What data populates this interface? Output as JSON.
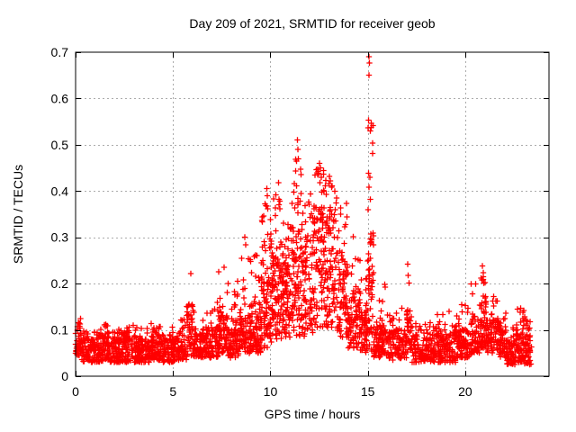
{
  "page": {
    "background": "#ffffff"
  },
  "chart_data": {
    "type": "scatter",
    "title": "Day 209 of 2021, SRMTID for receiver geob",
    "xlabel": "GPS time / hours",
    "ylabel": "SRMTID / TECUs",
    "xlim": [
      0,
      24.3
    ],
    "ylim": [
      0,
      0.7
    ],
    "xticks": [
      0,
      5,
      10,
      15,
      20
    ],
    "xtick_labels": [
      "0",
      "5",
      "10",
      "15",
      "20"
    ],
    "yticks": [
      0,
      0.1,
      0.2,
      0.3,
      0.4,
      0.5,
      0.6,
      0.7
    ],
    "ytick_labels": [
      "0",
      "0.1",
      "0.2",
      "0.3",
      "0.4",
      "0.5",
      "0.6",
      "0.7"
    ],
    "grid": true,
    "legend": "none",
    "marker": "plus",
    "marker_color": "#ff0000",
    "grid_color": "#ababab",
    "axis_color": "#000000",
    "data_time_span_hours": [
      0,
      23.4
    ],
    "envelope_bins_comment": "[t_start,t_end,band_low,band_typical,band_max,n_points] read from plot pixels",
    "envelope_bins": [
      [
        0.0,
        0.3,
        0.045,
        0.105,
        0.125,
        45
      ],
      [
        0.3,
        1.0,
        0.03,
        0.08,
        0.1,
        95
      ],
      [
        1.0,
        1.7,
        0.03,
        0.085,
        0.115,
        95
      ],
      [
        1.7,
        2.4,
        0.03,
        0.08,
        0.105,
        95
      ],
      [
        2.4,
        3.1,
        0.03,
        0.085,
        0.11,
        95
      ],
      [
        3.1,
        3.8,
        0.03,
        0.08,
        0.105,
        95
      ],
      [
        3.8,
        4.5,
        0.035,
        0.085,
        0.115,
        95
      ],
      [
        4.5,
        5.2,
        0.03,
        0.08,
        0.11,
        90
      ],
      [
        5.2,
        5.7,
        0.035,
        0.09,
        0.13,
        60
      ],
      [
        5.7,
        6.1,
        0.04,
        0.15,
        0.225,
        55
      ],
      [
        6.1,
        6.7,
        0.04,
        0.09,
        0.13,
        75
      ],
      [
        6.7,
        7.3,
        0.04,
        0.1,
        0.16,
        80
      ],
      [
        7.3,
        7.8,
        0.05,
        0.13,
        0.235,
        70
      ],
      [
        7.8,
        8.4,
        0.04,
        0.12,
        0.21,
        80
      ],
      [
        8.4,
        9.0,
        0.05,
        0.13,
        0.26,
        85
      ],
      [
        9.0,
        9.5,
        0.05,
        0.15,
        0.28,
        80
      ],
      [
        9.5,
        10.0,
        0.06,
        0.2,
        0.4,
        85
      ],
      [
        10.0,
        10.5,
        0.07,
        0.24,
        0.42,
        90
      ],
      [
        10.5,
        11.0,
        0.08,
        0.22,
        0.35,
        90
      ],
      [
        11.0,
        11.6,
        0.08,
        0.27,
        0.47,
        95
      ],
      [
        11.6,
        12.2,
        0.08,
        0.25,
        0.4,
        90
      ],
      [
        12.2,
        12.8,
        0.1,
        0.34,
        0.455,
        95
      ],
      [
        12.8,
        13.4,
        0.1,
        0.32,
        0.435,
        95
      ],
      [
        13.4,
        14.0,
        0.08,
        0.25,
        0.38,
        85
      ],
      [
        14.0,
        14.6,
        0.06,
        0.17,
        0.31,
        80
      ],
      [
        14.6,
        15.0,
        0.05,
        0.14,
        0.26,
        60
      ],
      [
        15.0,
        15.3,
        0.05,
        0.28,
        0.55,
        55
      ],
      [
        15.3,
        16.0,
        0.04,
        0.11,
        0.22,
        90
      ],
      [
        16.0,
        17.0,
        0.035,
        0.095,
        0.16,
        115
      ],
      [
        17.0,
        17.25,
        0.05,
        0.14,
        0.245,
        30
      ],
      [
        17.25,
        18.5,
        0.03,
        0.085,
        0.13,
        150
      ],
      [
        18.5,
        19.5,
        0.03,
        0.09,
        0.145,
        120
      ],
      [
        19.5,
        20.3,
        0.04,
        0.1,
        0.16,
        95
      ],
      [
        20.3,
        20.75,
        0.05,
        0.13,
        0.2,
        60
      ],
      [
        20.75,
        21.1,
        0.06,
        0.17,
        0.235,
        55
      ],
      [
        21.1,
        21.7,
        0.05,
        0.12,
        0.175,
        70
      ],
      [
        21.7,
        22.1,
        0.04,
        0.1,
        0.14,
        50
      ],
      [
        22.1,
        22.55,
        0.025,
        0.075,
        0.11,
        55
      ],
      [
        22.55,
        23.05,
        0.03,
        0.1,
        0.148,
        65
      ],
      [
        23.05,
        23.4,
        0.025,
        0.085,
        0.125,
        50
      ]
    ],
    "notable_points": [
      [
        15.05,
        0.69
      ],
      [
        15.08,
        0.677
      ],
      [
        15.06,
        0.65
      ],
      [
        15.04,
        0.553
      ],
      [
        15.1,
        0.43
      ],
      [
        15.07,
        0.408
      ],
      [
        15.13,
        0.382
      ],
      [
        15.02,
        0.36
      ],
      [
        11.38,
        0.51
      ],
      [
        11.42,
        0.49
      ],
      [
        11.35,
        0.465
      ],
      [
        11.3,
        0.443
      ],
      [
        12.52,
        0.46
      ],
      [
        12.57,
        0.45
      ],
      [
        12.48,
        0.438
      ],
      [
        12.62,
        0.43
      ],
      [
        12.55,
        0.418
      ],
      [
        13.02,
        0.432
      ],
      [
        13.08,
        0.422
      ],
      [
        13.15,
        0.408
      ],
      [
        9.82,
        0.405
      ],
      [
        9.85,
        0.39
      ],
      [
        9.78,
        0.368
      ],
      [
        10.42,
        0.418
      ],
      [
        10.45,
        0.382
      ],
      [
        13.9,
        0.373
      ],
      [
        13.93,
        0.344
      ],
      [
        11.2,
        0.398
      ],
      [
        11.52,
        0.378
      ],
      [
        8.68,
        0.3
      ],
      [
        8.72,
        0.284
      ],
      [
        5.92,
        0.222
      ],
      [
        7.62,
        0.235
      ],
      [
        8.32,
        0.205
      ],
      [
        17.05,
        0.242
      ],
      [
        17.07,
        0.218
      ],
      [
        20.88,
        0.238
      ],
      [
        20.92,
        0.224
      ],
      [
        20.85,
        0.208
      ],
      [
        21.45,
        0.172
      ],
      [
        22.85,
        0.147
      ],
      [
        23.05,
        0.128
      ]
    ]
  }
}
